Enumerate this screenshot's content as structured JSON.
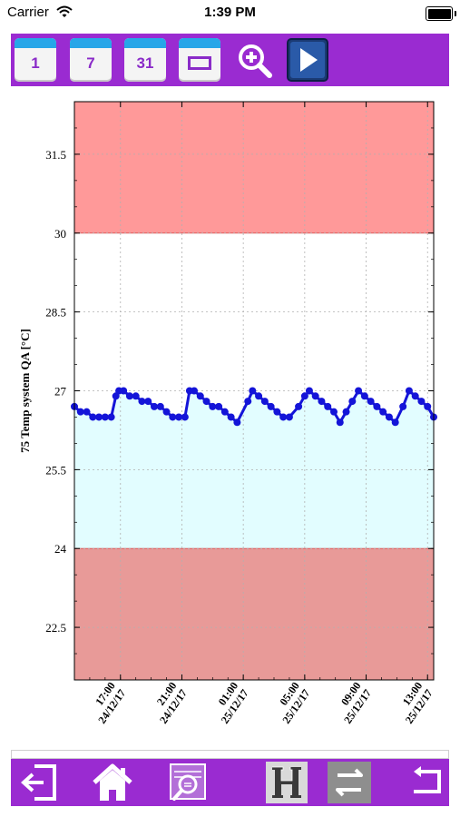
{
  "status_bar": {
    "carrier": "Carrier",
    "time": "1:39 PM"
  },
  "toolbar": {
    "calendar_buttons": [
      {
        "label": "1"
      },
      {
        "label": "7"
      },
      {
        "label": "31"
      }
    ]
  },
  "chart_data": {
    "type": "line",
    "ylabel": "75  Temp system QA [°C]",
    "ylim": [
      21.5,
      32.5
    ],
    "yticks": [
      "22.5",
      "24",
      "25.5",
      "27",
      "28.5",
      "30",
      "31.5"
    ],
    "x_ticks": [
      {
        "time": "17:00",
        "date": "24/12/17",
        "t": 1.0
      },
      {
        "time": "21:00",
        "date": "24/12/17",
        "t": 5.0
      },
      {
        "time": "01:00",
        "date": "25/12/17",
        "t": 9.0
      },
      {
        "time": "05:00",
        "date": "25/12/17",
        "t": 13.0
      },
      {
        "time": "09:00",
        "date": "25/12/17",
        "t": 17.0
      },
      {
        "time": "13:00",
        "date": "25/12/17",
        "t": 21.0
      }
    ],
    "xlim": [
      -2.0,
      21.4
    ],
    "bands": [
      {
        "from": 30,
        "to": 32.5,
        "color": "#ff9999"
      },
      {
        "from": 24,
        "to": 30,
        "color": "#ffffff"
      },
      {
        "from": 21.5,
        "to": 24,
        "color": "#e89a98"
      }
    ],
    "fill_below_series": "#e2fdff",
    "grid": true,
    "series": [
      {
        "color": "#1414d8",
        "points": [
          [
            -2.0,
            26.7
          ],
          [
            -1.6,
            26.6
          ],
          [
            -1.2,
            26.6
          ],
          [
            -0.8,
            26.5
          ],
          [
            -0.4,
            26.5
          ],
          [
            0.0,
            26.5
          ],
          [
            0.4,
            26.5
          ],
          [
            0.7,
            26.9
          ],
          [
            0.9,
            27.0
          ],
          [
            1.2,
            27.0
          ],
          [
            1.6,
            26.9
          ],
          [
            2.0,
            26.9
          ],
          [
            2.4,
            26.8
          ],
          [
            2.8,
            26.8
          ],
          [
            3.2,
            26.7
          ],
          [
            3.6,
            26.7
          ],
          [
            4.0,
            26.6
          ],
          [
            4.4,
            26.5
          ],
          [
            4.8,
            26.5
          ],
          [
            5.2,
            26.5
          ],
          [
            5.5,
            27.0
          ],
          [
            5.8,
            27.0
          ],
          [
            6.2,
            26.9
          ],
          [
            6.6,
            26.8
          ],
          [
            7.0,
            26.7
          ],
          [
            7.4,
            26.7
          ],
          [
            7.8,
            26.6
          ],
          [
            8.2,
            26.5
          ],
          [
            8.6,
            26.4
          ],
          [
            9.3,
            26.8
          ],
          [
            9.6,
            27.0
          ],
          [
            10.0,
            26.9
          ],
          [
            10.4,
            26.8
          ],
          [
            10.8,
            26.7
          ],
          [
            11.2,
            26.6
          ],
          [
            11.6,
            26.5
          ],
          [
            12.0,
            26.5
          ],
          [
            12.6,
            26.7
          ],
          [
            13.0,
            26.9
          ],
          [
            13.3,
            27.0
          ],
          [
            13.7,
            26.9
          ],
          [
            14.1,
            26.8
          ],
          [
            14.5,
            26.7
          ],
          [
            14.9,
            26.6
          ],
          [
            15.3,
            26.4
          ],
          [
            15.7,
            26.6
          ],
          [
            16.1,
            26.8
          ],
          [
            16.5,
            27.0
          ],
          [
            16.9,
            26.9
          ],
          [
            17.3,
            26.8
          ],
          [
            17.7,
            26.7
          ],
          [
            18.1,
            26.6
          ],
          [
            18.5,
            26.5
          ],
          [
            18.9,
            26.4
          ],
          [
            19.4,
            26.7
          ],
          [
            19.8,
            27.0
          ],
          [
            20.2,
            26.9
          ],
          [
            20.6,
            26.8
          ],
          [
            21.0,
            26.7
          ],
          [
            21.4,
            26.5
          ]
        ]
      }
    ]
  }
}
